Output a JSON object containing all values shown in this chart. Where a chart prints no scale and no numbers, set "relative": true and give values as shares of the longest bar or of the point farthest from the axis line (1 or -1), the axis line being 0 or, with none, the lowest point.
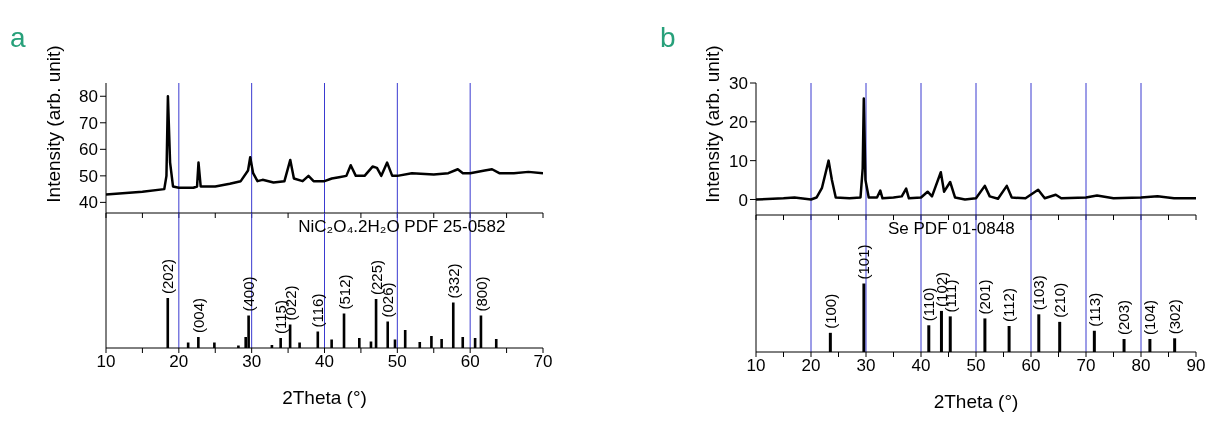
{
  "chart_data": [
    {
      "type": "line",
      "title": "a",
      "ylabel": "Intensity (arb. unit)",
      "color": "#000000",
      "x": [
        10,
        15,
        18,
        18.3,
        18.5,
        18.8,
        19.2,
        20,
        22,
        22.5,
        22.7,
        23,
        25,
        27,
        28.5,
        29.5,
        29.8,
        30.2,
        30.8,
        31.5,
        33,
        34.5,
        35.3,
        35.8,
        37,
        37.8,
        38.5,
        40,
        41,
        42,
        43,
        43.6,
        44.3,
        45.5,
        46.6,
        47.2,
        47.8,
        48.6,
        49.3,
        50,
        52,
        55,
        57,
        58.3,
        59,
        60,
        62,
        63,
        64,
        66,
        68,
        70
      ],
      "values": [
        43,
        44,
        45,
        50,
        80,
        55,
        46,
        45.5,
        45.5,
        46,
        55,
        46,
        46,
        47,
        48,
        52,
        57,
        51,
        48,
        48.5,
        47.5,
        48,
        56,
        49,
        48,
        50,
        48,
        48,
        49,
        49.5,
        50,
        54,
        50,
        50,
        53.5,
        53,
        50,
        55,
        50,
        50,
        51,
        50.5,
        51,
        52.5,
        51,
        51,
        52,
        52.5,
        51,
        51,
        51.5,
        51
      ],
      "xlim": [
        10,
        70
      ],
      "xticks": [
        10,
        {
          "value": 15,
          "label": null
        },
        20,
        {
          "value": 25,
          "label": null
        },
        30,
        {
          "value": 35,
          "label": null
        },
        40,
        {
          "value": 45,
          "label": null
        },
        50,
        {
          "value": 55,
          "label": null
        },
        60,
        {
          "value": 65,
          "label": null
        },
        70
      ],
      "ylim": [
        36,
        85
      ],
      "yticks": [
        40,
        50,
        60,
        70,
        80
      ],
      "tick_labels": "y",
      "ref_lines": [
        {
          "axis": "x",
          "value": 20,
          "color": "#3a3ad0"
        },
        {
          "axis": "x",
          "value": 30,
          "color": "#3a3ad0"
        },
        {
          "axis": "x",
          "value": 40,
          "color": "#3a3ad0"
        },
        {
          "axis": "x",
          "value": 50,
          "color": "#3a3ad0"
        },
        {
          "axis": "x",
          "value": 60,
          "color": "#3a3ad0"
        }
      ]
    },
    {
      "type": "bar",
      "relative": true,
      "color": "#000000",
      "xlabel": "2Theta (°)",
      "annotations": [
        "NiC₂O₄.2H₂O PDF 25-0582",
        {
          "text": "(202)",
          "x": 18.5,
          "y": 1
        },
        {
          "text": "(004)",
          "x": 22.7,
          "y": 0.22
        },
        {
          "text": "(400)",
          "x": 29.6,
          "y": 0.65
        },
        {
          "text": "(115)",
          "x": 34.0,
          "y": 0.2
        },
        {
          "text": "(022)",
          "x": 35.3,
          "y": 0.47
        },
        {
          "text": "(116)",
          "x": 39.1,
          "y": 0.33
        },
        {
          "text": "(512)",
          "x": 42.7,
          "y": 0.69
        },
        {
          "text": "(225)",
          "x": 47.1,
          "y": 0.98
        },
        {
          "text": "(026)",
          "x": 48.7,
          "y": 0.53
        },
        {
          "text": "(332)",
          "x": 57.7,
          "y": 0.91
        },
        {
          "text": "(800)",
          "x": 61.5,
          "y": 0.65
        }
      ],
      "x": [
        18.5,
        21.3,
        22.7,
        24.9,
        28.2,
        29.2,
        29.6,
        32.8,
        34.0,
        35.3,
        36.6,
        39.1,
        41.0,
        42.7,
        44.8,
        46.4,
        47.1,
        48.7,
        49.7,
        51.1,
        53.1,
        54.7,
        56.1,
        57.7,
        59.0,
        60.7,
        61.5,
        63.6
      ],
      "values": [
        1,
        0.11,
        0.22,
        0.11,
        0.05,
        0.22,
        0.65,
        0.06,
        0.2,
        0.47,
        0.11,
        0.33,
        0.17,
        0.69,
        0.2,
        0.13,
        0.98,
        0.53,
        0.17,
        0.36,
        0.12,
        0.24,
        0.18,
        0.91,
        0.22,
        0.2,
        0.65,
        0.18
      ],
      "xlim": [
        10,
        70
      ],
      "xticks": [
        10,
        {
          "value": 15,
          "label": null
        },
        20,
        {
          "value": 25,
          "label": null
        },
        30,
        {
          "value": 35,
          "label": null
        },
        40,
        {
          "value": 45,
          "label": null
        },
        50,
        {
          "value": 55,
          "label": null
        },
        60,
        {
          "value": 65,
          "label": null
        },
        70
      ],
      "tick_labels": "x",
      "ref_lines": [
        {
          "axis": "x",
          "value": 20,
          "color": "#3a3ad0"
        },
        {
          "axis": "x",
          "value": 30,
          "color": "#3a3ad0"
        },
        {
          "axis": "x",
          "value": 40,
          "color": "#3a3ad0"
        },
        {
          "axis": "x",
          "value": 50,
          "color": "#3a3ad0"
        },
        {
          "axis": "x",
          "value": 60,
          "color": "#3a3ad0"
        }
      ]
    },
    {
      "type": "line",
      "title": "b",
      "ylabel": "Intensity (arb. unit)",
      "color": "#000000",
      "x": [
        10,
        15,
        17,
        20,
        21,
        22,
        23.2,
        23.8,
        24.5,
        27,
        29,
        29.4,
        29.6,
        29.9,
        30.5,
        32,
        32.6,
        33,
        35,
        36.5,
        37.3,
        37.8,
        40,
        41.2,
        42,
        43.6,
        44.2,
        45.3,
        46.2,
        48,
        50,
        51.6,
        52.5,
        54,
        55.6,
        56.5,
        59,
        61.3,
        62.5,
        64.5,
        65.5,
        70,
        72,
        75,
        80,
        83,
        86,
        90
      ],
      "values": [
        0,
        0.3,
        0.5,
        0,
        0.5,
        3,
        10,
        5,
        0.5,
        0.3,
        0.5,
        8,
        26,
        5,
        0.5,
        0.5,
        2.3,
        0.3,
        0.5,
        0.8,
        2.8,
        0.3,
        0.5,
        2,
        0.8,
        7,
        2,
        4.5,
        0.5,
        0,
        0.3,
        3.5,
        0.8,
        0.2,
        3.5,
        0.5,
        0.3,
        2.5,
        0.3,
        1.2,
        0.3,
        0.5,
        1,
        0.3,
        0.5,
        0.8,
        0.3,
        0.3
      ],
      "xlim": [
        10,
        90
      ],
      "xticks": [
        10,
        {
          "value": 15,
          "label": null
        },
        20,
        {
          "value": 25,
          "label": null
        },
        30,
        {
          "value": 35,
          "label": null
        },
        40,
        {
          "value": 45,
          "label": null
        },
        50,
        {
          "value": 55,
          "label": null
        },
        60,
        {
          "value": 65,
          "label": null
        },
        70,
        {
          "value": 75,
          "label": null
        },
        80,
        {
          "value": 85,
          "label": null
        },
        90
      ],
      "ylim": [
        -4,
        30
      ],
      "yticks": [
        0,
        10,
        20,
        30
      ],
      "tick_labels": "y",
      "ref_lines": [
        {
          "axis": "x",
          "value": 20,
          "color": "#3a3ad0"
        },
        {
          "axis": "x",
          "value": 30,
          "color": "#3a3ad0"
        },
        {
          "axis": "x",
          "value": 40,
          "color": "#3a3ad0"
        },
        {
          "axis": "x",
          "value": 50,
          "color": "#3a3ad0"
        },
        {
          "axis": "x",
          "value": 60,
          "color": "#3a3ad0"
        },
        {
          "axis": "x",
          "value": 70,
          "color": "#3a3ad0"
        },
        {
          "axis": "x",
          "value": 80,
          "color": "#3a3ad0"
        }
      ]
    },
    {
      "type": "bar",
      "relative": true,
      "color": "#000000",
      "xlabel": "2Theta (°)",
      "annotations": [
        "Se PDF 01-0848",
        {
          "text": "(100)",
          "x": 23.5,
          "y": 0.28
        },
        {
          "text": "(101)",
          "x": 29.6,
          "y": 1
        },
        {
          "text": "(110)",
          "x": 41.4,
          "y": 0.39
        },
        {
          "text": "(102)",
          "x": 43.7,
          "y": 0.6
        },
        {
          "text": "(111)",
          "x": 45.3,
          "y": 0.52
        },
        {
          "text": "(201)",
          "x": 51.6,
          "y": 0.49
        },
        {
          "text": "(112)",
          "x": 56.0,
          "y": 0.38
        },
        {
          "text": "(103)",
          "x": 61.4,
          "y": 0.55
        },
        {
          "text": "(210)",
          "x": 65.2,
          "y": 0.44
        },
        {
          "text": "(113)",
          "x": 71.5,
          "y": 0.31
        },
        {
          "text": "(203)",
          "x": 76.9,
          "y": 0.19
        },
        {
          "text": "(104)",
          "x": 81.6,
          "y": 0.19
        },
        {
          "text": "(302)",
          "x": 86.1,
          "y": 0.2
        }
      ],
      "x": [
        23.5,
        29.6,
        41.4,
        43.7,
        45.3,
        51.6,
        56.0,
        61.4,
        65.2,
        71.5,
        76.9,
        81.6,
        86.1
      ],
      "values": [
        0.28,
        1,
        0.39,
        0.6,
        0.52,
        0.49,
        0.38,
        0.55,
        0.44,
        0.31,
        0.19,
        0.19,
        0.2
      ],
      "xlim": [
        10,
        90
      ],
      "xticks": [
        10,
        {
          "value": 15,
          "label": null
        },
        20,
        {
          "value": 25,
          "label": null
        },
        30,
        {
          "value": 35,
          "label": null
        },
        40,
        {
          "value": 45,
          "label": null
        },
        50,
        {
          "value": 55,
          "label": null
        },
        60,
        {
          "value": 65,
          "label": null
        },
        70,
        {
          "value": 75,
          "label": null
        },
        80,
        {
          "value": 85,
          "label": null
        },
        90
      ],
      "tick_labels": "x",
      "ref_lines": [
        {
          "axis": "x",
          "value": 20,
          "color": "#3a3ad0"
        },
        {
          "axis": "x",
          "value": 30,
          "color": "#3a3ad0"
        },
        {
          "axis": "x",
          "value": 40,
          "color": "#3a3ad0"
        },
        {
          "axis": "x",
          "value": 50,
          "color": "#3a3ad0"
        },
        {
          "axis": "x",
          "value": 60,
          "color": "#3a3ad0"
        },
        {
          "axis": "x",
          "value": 70,
          "color": "#3a3ad0"
        },
        {
          "axis": "x",
          "value": 80,
          "color": "#3a3ad0"
        }
      ]
    }
  ]
}
